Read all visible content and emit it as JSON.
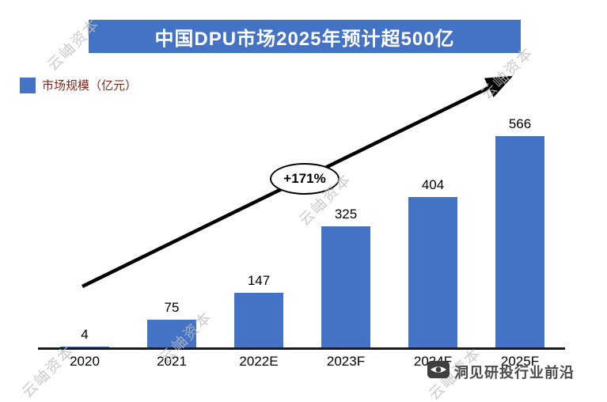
{
  "title": {
    "text": "中国DPU市场2025年预计超500亿"
  },
  "legend": {
    "label": "市场规模（亿元）"
  },
  "chart_data": {
    "type": "bar",
    "categories": [
      "2020",
      "2021",
      "2022E",
      "2023F",
      "2024F",
      "2025F"
    ],
    "values": [
      4,
      75,
      147,
      325,
      404,
      566
    ],
    "series": [
      {
        "name": "市场规模（亿元）",
        "values": [
          4,
          75,
          147,
          325,
          404,
          566
        ]
      }
    ],
    "title": "中国DPU市场2025年预计超500亿",
    "xlabel": "",
    "ylabel": "市场规模（亿元）",
    "ylim": [
      0,
      600
    ],
    "grid": false,
    "legend_position": "top-left",
    "bar_color": "#4472C4",
    "value_labels": true,
    "annotations": [
      {
        "text": "+171%",
        "shape": "ellipse"
      }
    ]
  },
  "annotation": {
    "growth_label": "+171%"
  },
  "watermark": {
    "text": "云岫资本"
  },
  "footer_logo": {
    "text": "洞见研投行业前沿"
  },
  "colors": {
    "accent_blue": "#4472C4",
    "legend_text": "#7a2b20",
    "watermark_gray": "#bfbfbf",
    "logo_text": "#4a4a4a"
  }
}
